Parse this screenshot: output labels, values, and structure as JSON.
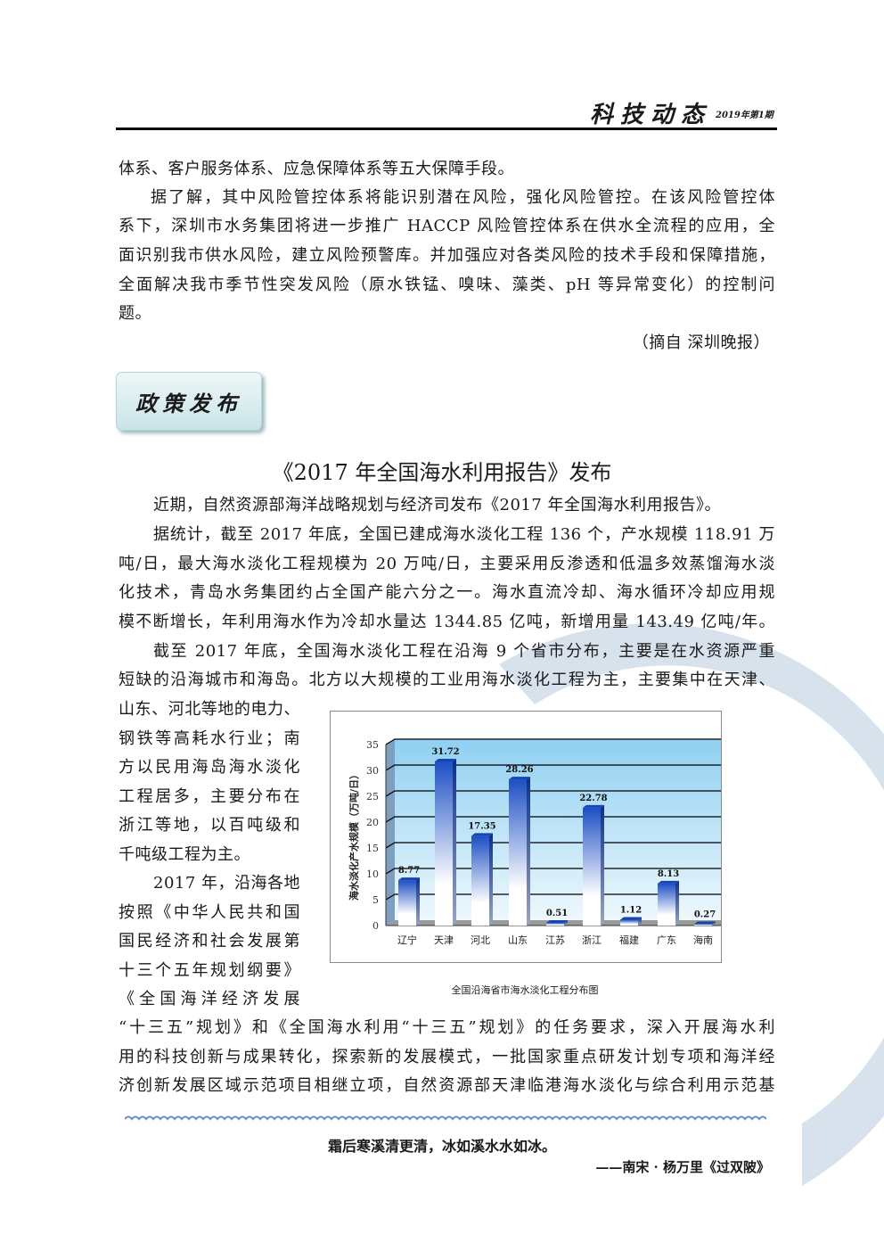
{
  "header": {
    "title": "科技动态",
    "issue": "2019年第1期"
  },
  "colors": {
    "watermark": "#c7d6e6",
    "bar": "#1d4fc4",
    "plot_bg": "#bfe4f7",
    "section_box": "#cfe7ea"
  },
  "prev_article": {
    "lines": [
      "体系、客户服务体系、应急保障体系等五大保障手段。",
      "据了解，其中风险管控体系将能识别潜在风险，强化风险管控。在该风险管控体",
      "系下，深圳市水务集团将进一步推广 HACCP 风险管控体系在供水全流程的应用，全",
      "面识别我市供水风险，建立风险预警库。并加强应对各类风险的技术手段和保障措施，",
      "全面解决我市季节性突发风险（原水铁锰、嗅味、藻类、pH 等异常变化）的控制问",
      "题。"
    ],
    "source": "（摘自  深圳晚报）"
  },
  "section": {
    "label": "政策发布"
  },
  "article": {
    "title": "《2017 年全国海水利用报告》发布",
    "lines_full_top": [
      "近期，自然资源部海洋战略规划与经济司发布《2017 年全国海水利用报告》。",
      "据统计，截至 2017 年底，全国已建成海水淡化工程 136 个，产水规模 118.91 万",
      "吨/日，最大海水淡化工程规模为 20 万吨/日，主要采用反渗透和低温多效蒸馏海水淡",
      "化技术，青岛水务集团约占全国产能六分之一。海水直流冷却、海水循环冷却应用规",
      "模不断增长，年利用海水作为冷却水量达 1344.85 亿吨，新增用量 143.49 亿吨/年。",
      "截至 2017 年底，全国海水淡化工程在沿海 9 个省市分布，主要是在水资源严重",
      "短缺的沿海城市和海岛。北方以大规模的工业用海水淡化工程为主，主要集中在天津、"
    ],
    "lines_narrow": [
      "山东、河北等地的电力、",
      "钢铁等高耗水行业；南",
      "方以民用海岛海水淡化",
      "工程居多，主要分布在",
      "浙江等地，以百吨级和",
      "千吨级工程为主。",
      "2017 年，沿海各地",
      "按照《中华人民共和国",
      "国民经济和社会发展第",
      "十三个五年规划纲要》",
      "《全国海洋经济发展"
    ],
    "lines_full_bottom": [
      "“十三五”规划》和《全国海水利用“十三五”规划》的任务要求，深入开展海水利",
      "用的科技创新与成果转化，探索新的发展模式，一批国家重点研发计划专项和海洋经",
      "济创新发展区域示范项目相继立项，自然资源部天津临港海水淡化与综合利用示范基"
    ]
  },
  "chart_data": {
    "type": "bar",
    "title": "",
    "caption": "全国沿海省市海水淡化工程分布图",
    "ylabel": "海水淡化产水规模（万吨/日）",
    "xlabel": "",
    "categories": [
      "辽宁",
      "天津",
      "河北",
      "山东",
      "江苏",
      "浙江",
      "福建",
      "广东",
      "海南"
    ],
    "values": [
      8.77,
      31.72,
      17.35,
      28.26,
      0.51,
      22.78,
      1.12,
      8.13,
      0.27
    ],
    "value_labels": [
      "8.77",
      "31.72",
      "17.35",
      "28.26",
      "0.51",
      "22.78",
      "1.12",
      "8.13",
      "0.27"
    ],
    "ylim": [
      0,
      35
    ],
    "yticks": [
      "0",
      "5",
      "10",
      "15",
      "20",
      "25",
      "30",
      "35"
    ],
    "grid": true,
    "style": "3d"
  },
  "footer": {
    "poem": "霜后寒溪清更清，冰如溪水水如冰。",
    "attribution": "——南宋 · 杨万里《过双陂》"
  }
}
